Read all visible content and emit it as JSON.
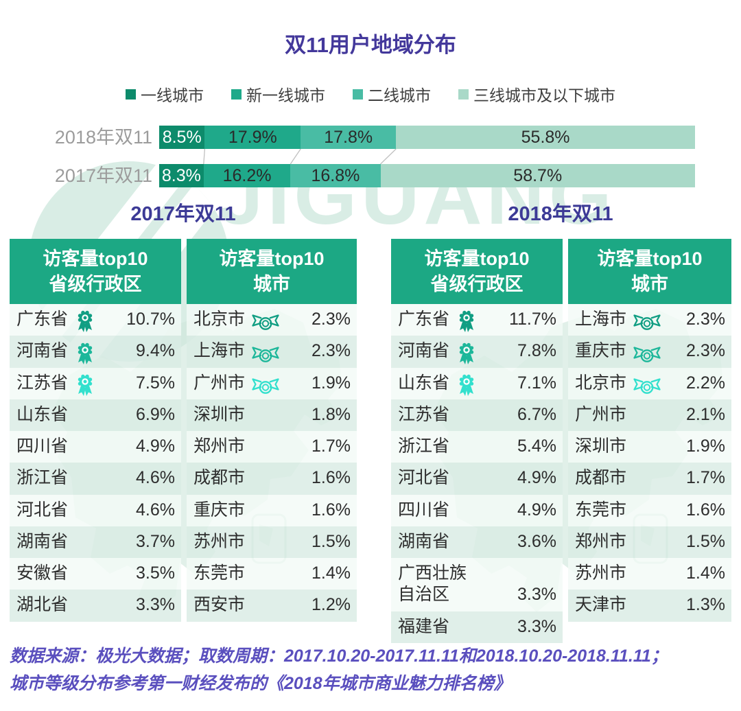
{
  "watermark": {
    "text": "JIGUANG"
  },
  "footer": {
    "line1": "数据来源：极光大数据；取数周期：2017.10.20-2017.11.11和2018.10.20-2018.11.11；",
    "line2": "城市等级分布参考第一财经发布的《2018年城市商业魅力排名榜》"
  },
  "colors": {
    "title": "#43389b",
    "section_title": "#3c3a96",
    "footer": "#5a4fbe",
    "bar_label": "#9c9c9c",
    "series": [
      "#0d8b6b",
      "#1fa98a",
      "#49bca4",
      "#a9d9c8"
    ],
    "segment_text_light": "#ffffff",
    "segment_text_dark": "#2a2a2a",
    "connector": "#c0c0c0",
    "table_header_bg": "#1ca884",
    "table_header_text": "#ffffff",
    "row_odd": "rgba(243,250,247,0.82)",
    "row_even": "rgba(217,236,228,0.82)",
    "row_text": "#2d2d2d",
    "medal": [
      "#119e83",
      "#1db79a",
      "#32e0cd"
    ],
    "watermark": "#d9ede5",
    "map": "#cfe7dc"
  },
  "chart_data": {
    "type": "bar",
    "subtype": "horizontal-stacked",
    "title": "双11用户地域分布",
    "unit": "%",
    "xlim": [
      0,
      100
    ],
    "legend_position": "top",
    "grid": false,
    "categories": [
      "2018年双11",
      "2017年双11"
    ],
    "series": [
      {
        "name": "一线城市",
        "values": [
          8.5,
          8.3
        ]
      },
      {
        "name": "新一线城市",
        "values": [
          17.9,
          16.2
        ]
      },
      {
        "name": "二线城市",
        "values": [
          17.8,
          16.8
        ]
      },
      {
        "name": "三线城市及以下城市",
        "values": [
          55.8,
          58.7
        ]
      }
    ],
    "sections": [
      "2017年双11",
      "2018年双11"
    ],
    "tables": [
      {
        "section": "2017年双11",
        "title": "访客量top10\n省级行政区",
        "medal_type": "rosette",
        "rows": [
          {
            "name": "广东省",
            "value": "10.7%",
            "medal": 1
          },
          {
            "name": "河南省",
            "value": "9.4%",
            "medal": 2
          },
          {
            "name": "江苏省",
            "value": "7.5%",
            "medal": 3
          },
          {
            "name": "山东省",
            "value": "6.9%",
            "medal": null
          },
          {
            "name": "四川省",
            "value": "4.9%",
            "medal": null
          },
          {
            "name": "浙江省",
            "value": "4.6%",
            "medal": null
          },
          {
            "name": "河北省",
            "value": "4.6%",
            "medal": null
          },
          {
            "name": "湖南省",
            "value": "3.7%",
            "medal": null
          },
          {
            "name": "安徽省",
            "value": "3.5%",
            "medal": null
          },
          {
            "name": "湖北省",
            "value": "3.3%",
            "medal": null
          }
        ]
      },
      {
        "section": "2017年双11",
        "title": "访客量top10\n城市",
        "medal_type": "banner",
        "rows": [
          {
            "name": "北京市",
            "value": "2.3%",
            "medal": 1
          },
          {
            "name": "上海市",
            "value": "2.3%",
            "medal": 2
          },
          {
            "name": "广州市",
            "value": "1.9%",
            "medal": 3
          },
          {
            "name": "深圳市",
            "value": "1.8%",
            "medal": null
          },
          {
            "name": "郑州市",
            "value": "1.7%",
            "medal": null
          },
          {
            "name": "成都市",
            "value": "1.6%",
            "medal": null
          },
          {
            "name": "重庆市",
            "value": "1.6%",
            "medal": null
          },
          {
            "name": "苏州市",
            "value": "1.5%",
            "medal": null
          },
          {
            "name": "东莞市",
            "value": "1.4%",
            "medal": null
          },
          {
            "name": "西安市",
            "value": "1.2%",
            "medal": null
          }
        ]
      },
      {
        "section": "2018年双11",
        "title": "访客量top10\n省级行政区",
        "medal_type": "rosette",
        "rows": [
          {
            "name": "广东省",
            "value": "11.7%",
            "medal": 1
          },
          {
            "name": "河南省",
            "value": "7.8%",
            "medal": 2
          },
          {
            "name": "山东省",
            "value": "7.1%",
            "medal": 3
          },
          {
            "name": "江苏省",
            "value": "6.7%",
            "medal": null
          },
          {
            "name": "浙江省",
            "value": "5.4%",
            "medal": null
          },
          {
            "name": "河北省",
            "value": "4.9%",
            "medal": null
          },
          {
            "name": "四川省",
            "value": "4.9%",
            "medal": null
          },
          {
            "name": "湖南省",
            "value": "3.6%",
            "medal": null
          },
          {
            "name": "广西壮族\n自治区",
            "value": "3.3%",
            "medal": null
          },
          {
            "name": "福建省",
            "value": "3.3%",
            "medal": null
          }
        ]
      },
      {
        "section": "2018年双11",
        "title": "访客量top10\n城市",
        "medal_type": "banner",
        "rows": [
          {
            "name": "上海市",
            "value": "2.3%",
            "medal": 1
          },
          {
            "name": "重庆市",
            "value": "2.3%",
            "medal": 2
          },
          {
            "name": "北京市",
            "value": "2.2%",
            "medal": 3
          },
          {
            "name": "广州市",
            "value": "2.1%",
            "medal": null
          },
          {
            "name": "深圳市",
            "value": "1.9%",
            "medal": null
          },
          {
            "name": "成都市",
            "value": "1.7%",
            "medal": null
          },
          {
            "name": "东莞市",
            "value": "1.6%",
            "medal": null
          },
          {
            "name": "郑州市",
            "value": "1.5%",
            "medal": null
          },
          {
            "name": "苏州市",
            "value": "1.4%",
            "medal": null
          },
          {
            "name": "天津市",
            "value": "1.3%",
            "medal": null
          }
        ]
      }
    ]
  }
}
